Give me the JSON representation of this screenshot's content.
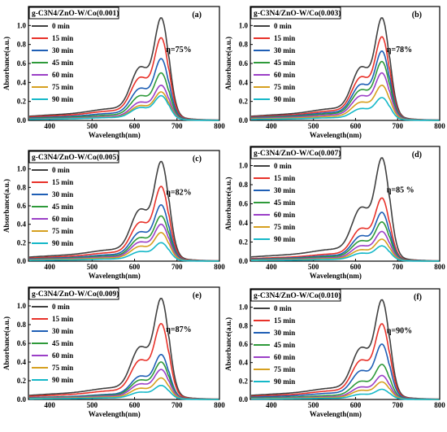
{
  "chart_data": [
    {
      "type": "line",
      "panel": "(a)",
      "title": "g-C3N4/ZnO-W/Co(0.001)",
      "efficiency": "η=75%",
      "xlabel": "Wavelength(nm)",
      "ylabel": "Absorbance(a.u.)",
      "xlim": [
        350,
        800
      ],
      "ylim": [
        0,
        1.2
      ],
      "xticks": [
        "400",
        "500",
        "600",
        "700",
        "800"
      ],
      "yticks": [
        "0.0",
        "0.2",
        "0.4",
        "0.6",
        "0.8",
        "1.0"
      ],
      "legend_position": "left",
      "peak_wavelength": 664,
      "series": [
        {
          "name": "0 min",
          "peak": 1.08,
          "color": "#404040"
        },
        {
          "name": "15 min",
          "peak": 0.87,
          "color": "#e8322a"
        },
        {
          "name": "30 min",
          "peak": 0.65,
          "color": "#1f5fb5"
        },
        {
          "name": "45 min",
          "peak": 0.5,
          "color": "#2e9a3a"
        },
        {
          "name": "60 min",
          "peak": 0.37,
          "color": "#9b3fc7"
        },
        {
          "name": "75 min",
          "peak": 0.3,
          "color": "#d6a020"
        },
        {
          "name": "90 min",
          "peak": 0.26,
          "color": "#15b8c8"
        }
      ]
    },
    {
      "type": "line",
      "panel": "(b)",
      "title": "g-C3N4/ZnO-W/Co(0.003)",
      "efficiency": "η=78%",
      "xlabel": "Wavelength(nm)",
      "ylabel": "Absorbance(a.u.)",
      "xlim": [
        350,
        800
      ],
      "ylim": [
        0,
        1.2
      ],
      "xticks": [
        "400",
        "500",
        "600",
        "700",
        "800"
      ],
      "yticks": [
        "0.0",
        "0.2",
        "0.4",
        "0.6",
        "0.8",
        "1.0"
      ],
      "legend_position": "left",
      "peak_wavelength": 664,
      "series": [
        {
          "name": "0 min",
          "peak": 1.08,
          "color": "#404040"
        },
        {
          "name": "15 min",
          "peak": 0.88,
          "color": "#e8322a"
        },
        {
          "name": "30 min",
          "peak": 0.73,
          "color": "#1f5fb5"
        },
        {
          "name": "45 min",
          "peak": 0.62,
          "color": "#2e9a3a"
        },
        {
          "name": "60 min",
          "peak": 0.5,
          "color": "#9b3fc7"
        },
        {
          "name": "75 min",
          "peak": 0.37,
          "color": "#d6a020"
        },
        {
          "name": "90 min",
          "peak": 0.24,
          "color": "#15b8c8"
        }
      ]
    },
    {
      "type": "line",
      "panel": "(c)",
      "title": "g-C3N4/ZnO-W/Co(0.005)",
      "efficiency": "η=82%",
      "xlabel": "Wavelength(nm)",
      "ylabel": "Absorbance(a.u.)",
      "xlim": [
        350,
        800
      ],
      "ylim": [
        0,
        1.2
      ],
      "xticks": [
        "400",
        "500",
        "600",
        "700",
        "800"
      ],
      "yticks": [
        "0.0",
        "0.2",
        "0.4",
        "0.6",
        "0.8",
        "1.0"
      ],
      "legend_position": "left",
      "peak_wavelength": 664,
      "series": [
        {
          "name": "0 min",
          "peak": 1.08,
          "color": "#404040"
        },
        {
          "name": "15 min",
          "peak": 0.81,
          "color": "#e8322a"
        },
        {
          "name": "30 min",
          "peak": 0.61,
          "color": "#1f5fb5"
        },
        {
          "name": "45 min",
          "peak": 0.49,
          "color": "#2e9a3a"
        },
        {
          "name": "60 min",
          "peak": 0.4,
          "color": "#9b3fc7"
        },
        {
          "name": "75 min",
          "peak": 0.31,
          "color": "#d6a020"
        },
        {
          "name": "90 min",
          "peak": 0.2,
          "color": "#15b8c8"
        }
      ]
    },
    {
      "type": "line",
      "panel": "(d)",
      "title": "g-C3N4/ZnO-W/Co(0.007)",
      "efficiency": "η=85 %",
      "xlabel": "Wavelength(nm)",
      "ylabel": "Absorbance(a.u.)",
      "xlim": [
        350,
        800
      ],
      "ylim": [
        0,
        1.2
      ],
      "xticks": [
        "400",
        "500",
        "600",
        "700",
        "800"
      ],
      "yticks": [
        "0.0",
        "0.2",
        "0.4",
        "0.6",
        "0.8",
        "1.0"
      ],
      "legend_position": "left",
      "peak_wavelength": 664,
      "series": [
        {
          "name": "0 min",
          "peak": 1.08,
          "color": "#404040"
        },
        {
          "name": "15 min",
          "peak": 0.66,
          "color": "#e8322a"
        },
        {
          "name": "30 min",
          "peak": 0.51,
          "color": "#1f5fb5"
        },
        {
          "name": "45 min",
          "peak": 0.41,
          "color": "#2e9a3a"
        },
        {
          "name": "60 min",
          "peak": 0.31,
          "color": "#9b3fc7"
        },
        {
          "name": "75 min",
          "peak": 0.23,
          "color": "#d6a020"
        },
        {
          "name": "90 min",
          "peak": 0.16,
          "color": "#15b8c8"
        }
      ]
    },
    {
      "type": "line",
      "panel": "(e)",
      "title": "g-C3N4/ZnO-W/Co(0.009)",
      "efficiency": "η=87%",
      "xlabel": "Wavelength(nm)",
      "ylabel": "Absorbance(a.u.)",
      "xlim": [
        350,
        800
      ],
      "ylim": [
        0,
        1.2
      ],
      "xticks": [
        "400",
        "500",
        "600",
        "700",
        "800"
      ],
      "yticks": [
        "0.0",
        "0.2",
        "0.4",
        "0.6",
        "0.8",
        "1.0"
      ],
      "legend_position": "left",
      "peak_wavelength": 664,
      "series": [
        {
          "name": "0 min",
          "peak": 1.08,
          "color": "#404040"
        },
        {
          "name": "15 min",
          "peak": 0.81,
          "color": "#e8322a"
        },
        {
          "name": "30 min",
          "peak": 0.48,
          "color": "#1f5fb5"
        },
        {
          "name": "45 min",
          "peak": 0.4,
          "color": "#2e9a3a"
        },
        {
          "name": "60 min",
          "peak": 0.32,
          "color": "#9b3fc7"
        },
        {
          "name": "75 min",
          "peak": 0.23,
          "color": "#d6a020"
        },
        {
          "name": "90 min",
          "peak": 0.15,
          "color": "#15b8c8"
        }
      ]
    },
    {
      "type": "line",
      "panel": "(f)",
      "title": "g-C3N4/ZnO-W/Co(0.010)",
      "efficiency": "η=90%",
      "xlabel": "Wavelength(nm)",
      "ylabel": "Absorbance(a.u.)",
      "xlim": [
        350,
        800
      ],
      "ylim": [
        0,
        1.2
      ],
      "xticks": [
        "400",
        "500",
        "600",
        "700",
        "800"
      ],
      "yticks": [
        "0.0",
        "0.2",
        "0.4",
        "0.6",
        "0.8",
        "1.0"
      ],
      "legend_position": "left",
      "peak_wavelength": 664,
      "series": [
        {
          "name": "0 min",
          "peak": 1.08,
          "color": "#404040"
        },
        {
          "name": "15 min",
          "peak": 0.82,
          "color": "#e8322a"
        },
        {
          "name": "30 min",
          "peak": 0.6,
          "color": "#1f5fb5"
        },
        {
          "name": "45 min",
          "peak": 0.38,
          "color": "#2e9a3a"
        },
        {
          "name": "60 min",
          "peak": 0.26,
          "color": "#9b3fc7"
        },
        {
          "name": "75 min",
          "peak": 0.19,
          "color": "#d6a020"
        },
        {
          "name": "90 min",
          "peak": 0.11,
          "color": "#15b8c8"
        }
      ]
    }
  ]
}
